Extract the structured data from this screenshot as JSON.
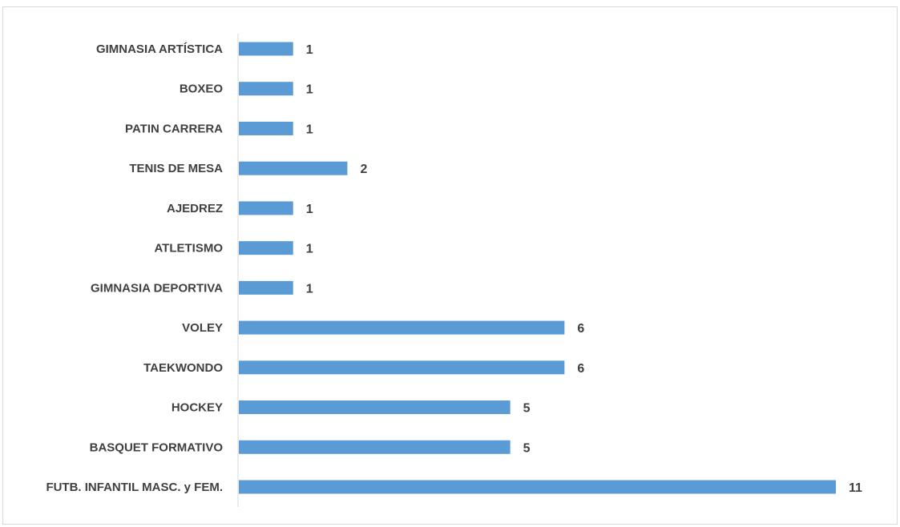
{
  "colors": {
    "bar": "#5b9bd5",
    "axis": "#d9d9d9",
    "text": "#404040"
  },
  "chart_data": {
    "type": "bar",
    "orientation": "horizontal",
    "categories": [
      "GIMNASIA ARTÍSTICA",
      "BOXEO",
      "PATIN CARRERA",
      "TENIS DE MESA",
      "AJEDREZ",
      "ATLETISMO",
      "GIMNASIA DEPORTIVA",
      "VOLEY",
      "TAEKWONDO",
      "HOCKEY",
      "BASQUET FORMATIVO",
      "FUTB. INFANTIL MASC. y FEM."
    ],
    "values": [
      1,
      1,
      1,
      2,
      1,
      1,
      1,
      6,
      6,
      5,
      5,
      11
    ],
    "value_labels": [
      "1",
      "1",
      "1",
      "2",
      "1",
      "1",
      "1",
      "6",
      "6",
      "5",
      "5",
      "11"
    ],
    "title": "",
    "xlabel": "",
    "ylabel": "",
    "xlim": [
      0,
      11
    ],
    "grid": false,
    "legend": "none",
    "data_labels": true
  }
}
